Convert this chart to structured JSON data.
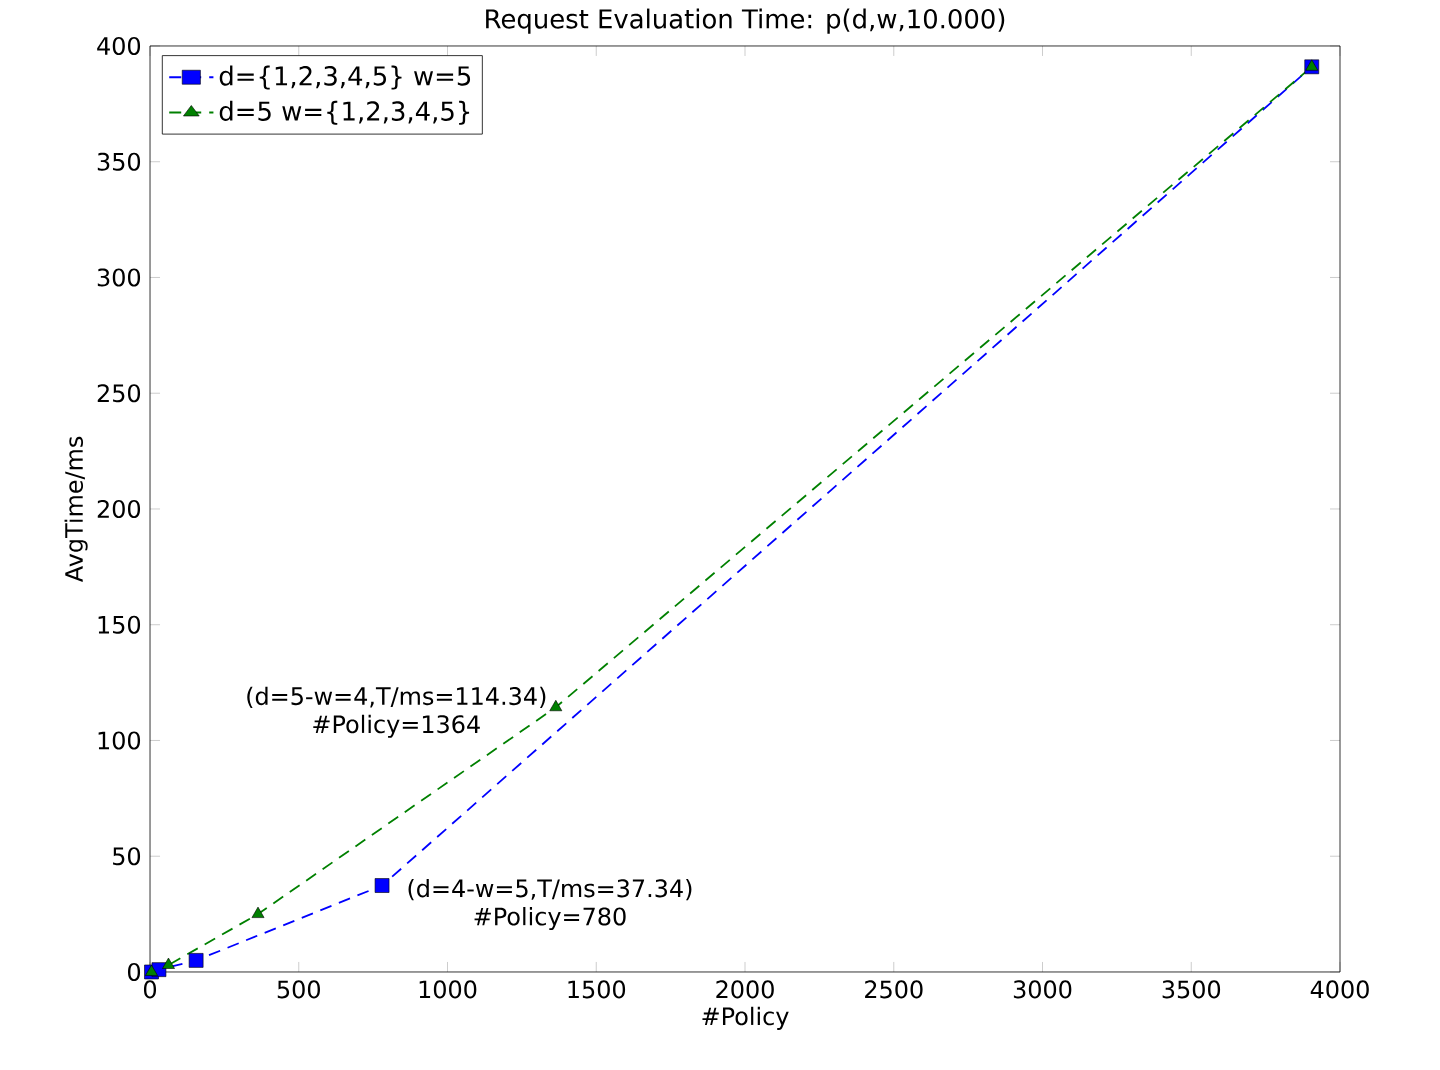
{
  "chart_data": {
    "type": "line",
    "title": "Request Evaluation Time: p(d,w,10.000)",
    "xlabel": "#Policy",
    "ylabel": "AvgTime/ms",
    "series": [
      {
        "name": "d={1,2,3,4,5} w=5",
        "color": "#0000ff",
        "marker": "square",
        "x": [
          5,
          30,
          155,
          780,
          3905
        ],
        "values": [
          0,
          1,
          5,
          37.34,
          391
        ]
      },
      {
        "name": "d=5 w={1,2,3,4,5}",
        "color": "#008000",
        "marker": "triangle",
        "x": [
          5,
          62,
          363,
          1364,
          3905
        ],
        "values": [
          0,
          3,
          25,
          114.34,
          391
        ]
      }
    ],
    "xlim": [
      0,
      4000
    ],
    "ylim": [
      0,
      400
    ],
    "xticks": [
      0,
      500,
      1000,
      1500,
      2000,
      2500,
      3000,
      3500,
      4000
    ],
    "yticks": [
      0,
      50,
      100,
      150,
      200,
      250,
      300,
      350,
      400
    ],
    "grid": false,
    "legend": "top left",
    "line_style": "dashed",
    "annotations": [
      {
        "text": "(d=4-w=5,T/ms=37.34)",
        "x": 780,
        "y": 37.34
      },
      "#Policy=780",
      {
        "text": "(d=5-w=4,T/ms=114.34)",
        "x": 1364,
        "y": 114.34
      },
      "#Policy=1364"
    ]
  }
}
